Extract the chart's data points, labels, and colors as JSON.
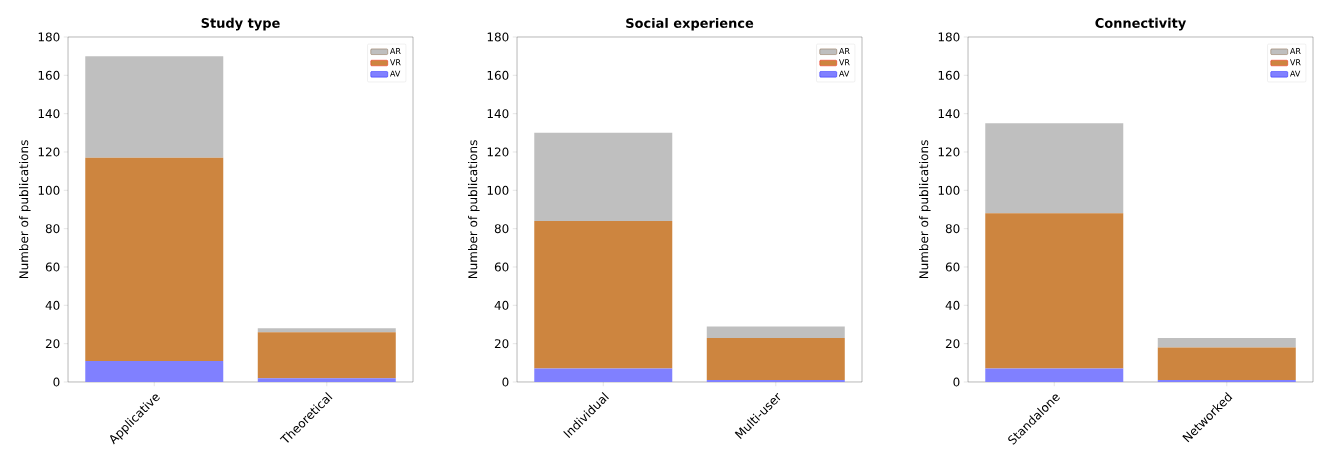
{
  "chart_data": [
    {
      "type": "bar",
      "stacked": true,
      "title": "Study type",
      "ylabel": "Number of publications",
      "categories": [
        "Applicative",
        "Theoretical"
      ],
      "ylim": [
        0,
        180
      ],
      "yticks": [
        0,
        20,
        40,
        60,
        80,
        100,
        120,
        140,
        160,
        180
      ],
      "legend": "top right",
      "series": [
        {
          "name": "AV",
          "color": "#8080ff",
          "values": [
            11,
            2
          ]
        },
        {
          "name": "VR",
          "color": "#cd853f",
          "values": [
            106,
            24
          ]
        },
        {
          "name": "AR",
          "color": "#bfbfbf",
          "values": [
            53,
            2
          ]
        }
      ]
    },
    {
      "type": "bar",
      "stacked": true,
      "title": "Social experience",
      "ylabel": "Number of publications",
      "categories": [
        "Individual",
        "Multi-user"
      ],
      "ylim": [
        0,
        180
      ],
      "yticks": [
        0,
        20,
        40,
        60,
        80,
        100,
        120,
        140,
        160,
        180
      ],
      "legend": "top right",
      "series": [
        {
          "name": "AV",
          "color": "#8080ff",
          "values": [
            7,
            1
          ]
        },
        {
          "name": "VR",
          "color": "#cd853f",
          "values": [
            77,
            22
          ]
        },
        {
          "name": "AR",
          "color": "#bfbfbf",
          "values": [
            46,
            6
          ]
        }
      ]
    },
    {
      "type": "bar",
      "stacked": true,
      "title": "Connectivity",
      "ylabel": "Number of publications",
      "categories": [
        "Standalone",
        "Networked"
      ],
      "ylim": [
        0,
        180
      ],
      "yticks": [
        0,
        20,
        40,
        60,
        80,
        100,
        120,
        140,
        160,
        180
      ],
      "legend": "top right",
      "series": [
        {
          "name": "AV",
          "color": "#8080ff",
          "values": [
            7,
            1
          ]
        },
        {
          "name": "VR",
          "color": "#cd853f",
          "values": [
            81,
            17
          ]
        },
        {
          "name": "AR",
          "color": "#bfbfbf",
          "values": [
            47,
            5
          ]
        }
      ]
    }
  ]
}
